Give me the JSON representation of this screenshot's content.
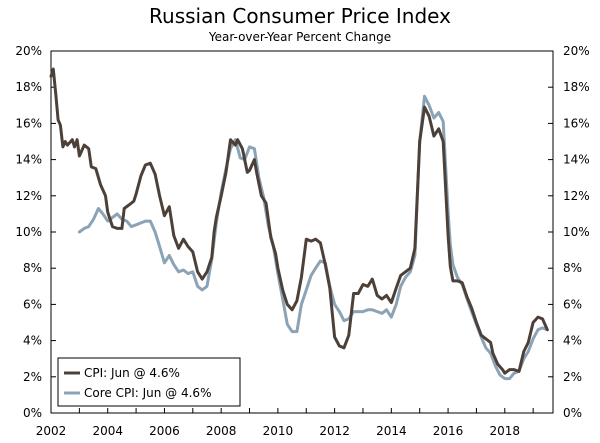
{
  "chart_data": {
    "type": "line",
    "title": "Russian Consumer Price Index",
    "subtitle": "Year-over-Year Percent Change",
    "xlabel": "",
    "ylabel": "",
    "xlim": [
      2002,
      2019.7
    ],
    "ylim": [
      0,
      20
    ],
    "x_ticks": [
      2002,
      2004,
      2006,
      2008,
      2010,
      2012,
      2014,
      2016,
      2018
    ],
    "x_tick_labels": [
      "2002",
      "2004",
      "2006",
      "2008",
      "2010",
      "2012",
      "2014",
      "2016",
      "2018"
    ],
    "y_ticks": [
      0,
      2,
      4,
      6,
      8,
      10,
      12,
      14,
      16,
      18,
      20
    ],
    "y_tick_labels": [
      "0%",
      "2%",
      "4%",
      "6%",
      "8%",
      "10%",
      "12%",
      "14%",
      "16%",
      "18%",
      "20%"
    ],
    "legend_position": "bottom-left",
    "series": [
      {
        "name": "CPI: Jun @ 4.6%",
        "color": "#4d4038",
        "points": [
          [
            2002.0,
            18.6
          ],
          [
            2002.08,
            19.0
          ],
          [
            2002.17,
            17.6
          ],
          [
            2002.25,
            16.2
          ],
          [
            2002.33,
            15.9
          ],
          [
            2002.42,
            14.7
          ],
          [
            2002.5,
            15.0
          ],
          [
            2002.58,
            14.8
          ],
          [
            2002.75,
            15.1
          ],
          [
            2002.83,
            14.7
          ],
          [
            2002.92,
            15.1
          ],
          [
            2003.0,
            14.2
          ],
          [
            2003.17,
            14.8
          ],
          [
            2003.33,
            14.6
          ],
          [
            2003.42,
            13.6
          ],
          [
            2003.58,
            13.5
          ],
          [
            2003.75,
            12.6
          ],
          [
            2003.92,
            12.0
          ],
          [
            2004.0,
            11.1
          ],
          [
            2004.17,
            10.3
          ],
          [
            2004.33,
            10.2
          ],
          [
            2004.5,
            10.2
          ],
          [
            2004.58,
            11.3
          ],
          [
            2004.75,
            11.5
          ],
          [
            2004.92,
            11.7
          ],
          [
            2005.0,
            12.1
          ],
          [
            2005.17,
            13.1
          ],
          [
            2005.33,
            13.7
          ],
          [
            2005.5,
            13.8
          ],
          [
            2005.67,
            13.2
          ],
          [
            2005.83,
            12.0
          ],
          [
            2006.0,
            10.9
          ],
          [
            2006.17,
            11.4
          ],
          [
            2006.33,
            9.8
          ],
          [
            2006.5,
            9.1
          ],
          [
            2006.67,
            9.6
          ],
          [
            2006.83,
            9.2
          ],
          [
            2007.0,
            8.9
          ],
          [
            2007.17,
            7.8
          ],
          [
            2007.33,
            7.4
          ],
          [
            2007.5,
            7.8
          ],
          [
            2007.67,
            8.6
          ],
          [
            2007.75,
            10.0
          ],
          [
            2007.83,
            10.8
          ],
          [
            2008.0,
            12.0
          ],
          [
            2008.17,
            13.3
          ],
          [
            2008.33,
            15.1
          ],
          [
            2008.5,
            14.8
          ],
          [
            2008.58,
            15.1
          ],
          [
            2008.75,
            14.6
          ],
          [
            2008.92,
            13.3
          ],
          [
            2009.0,
            13.4
          ],
          [
            2009.17,
            14.0
          ],
          [
            2009.25,
            13.3
          ],
          [
            2009.42,
            12.0
          ],
          [
            2009.58,
            11.6
          ],
          [
            2009.75,
            9.7
          ],
          [
            2009.92,
            8.8
          ],
          [
            2010.0,
            8.0
          ],
          [
            2010.17,
            6.8
          ],
          [
            2010.33,
            6.0
          ],
          [
            2010.5,
            5.7
          ],
          [
            2010.67,
            6.2
          ],
          [
            2010.83,
            7.5
          ],
          [
            2011.0,
            9.6
          ],
          [
            2011.17,
            9.5
          ],
          [
            2011.33,
            9.6
          ],
          [
            2011.5,
            9.4
          ],
          [
            2011.67,
            8.2
          ],
          [
            2011.83,
            6.9
          ],
          [
            2012.0,
            4.2
          ],
          [
            2012.17,
            3.7
          ],
          [
            2012.33,
            3.6
          ],
          [
            2012.5,
            4.3
          ],
          [
            2012.67,
            6.6
          ],
          [
            2012.83,
            6.6
          ],
          [
            2013.0,
            7.1
          ],
          [
            2013.17,
            7.0
          ],
          [
            2013.33,
            7.4
          ],
          [
            2013.5,
            6.5
          ],
          [
            2013.67,
            6.3
          ],
          [
            2013.83,
            6.5
          ],
          [
            2014.0,
            6.1
          ],
          [
            2014.17,
            6.9
          ],
          [
            2014.33,
            7.6
          ],
          [
            2014.5,
            7.8
          ],
          [
            2014.67,
            8.0
          ],
          [
            2014.83,
            9.1
          ],
          [
            2015.0,
            15.0
          ],
          [
            2015.17,
            16.9
          ],
          [
            2015.33,
            16.4
          ],
          [
            2015.5,
            15.3
          ],
          [
            2015.67,
            15.7
          ],
          [
            2015.83,
            15.0
          ],
          [
            2016.0,
            9.8
          ],
          [
            2016.08,
            8.1
          ],
          [
            2016.17,
            7.3
          ],
          [
            2016.33,
            7.3
          ],
          [
            2016.5,
            7.2
          ],
          [
            2016.67,
            6.4
          ],
          [
            2016.83,
            5.8
          ],
          [
            2017.0,
            5.0
          ],
          [
            2017.17,
            4.3
          ],
          [
            2017.33,
            4.1
          ],
          [
            2017.5,
            3.9
          ],
          [
            2017.58,
            3.3
          ],
          [
            2017.75,
            2.7
          ],
          [
            2017.92,
            2.4
          ],
          [
            2018.0,
            2.2
          ],
          [
            2018.17,
            2.4
          ],
          [
            2018.33,
            2.4
          ],
          [
            2018.5,
            2.3
          ],
          [
            2018.67,
            3.4
          ],
          [
            2018.83,
            3.9
          ],
          [
            2019.0,
            5.0
          ],
          [
            2019.17,
            5.3
          ],
          [
            2019.33,
            5.2
          ],
          [
            2019.5,
            4.6
          ]
        ]
      },
      {
        "name": "Core CPI: Jun @ 4.6%",
        "color": "#8ba3b5",
        "points": [
          [
            2003.0,
            10.0
          ],
          [
            2003.17,
            10.2
          ],
          [
            2003.33,
            10.3
          ],
          [
            2003.5,
            10.7
          ],
          [
            2003.67,
            11.3
          ],
          [
            2003.83,
            11.0
          ],
          [
            2004.0,
            10.6
          ],
          [
            2004.17,
            10.8
          ],
          [
            2004.33,
            11.0
          ],
          [
            2004.5,
            10.7
          ],
          [
            2004.67,
            10.6
          ],
          [
            2004.83,
            10.3
          ],
          [
            2005.0,
            10.4
          ],
          [
            2005.17,
            10.5
          ],
          [
            2005.33,
            10.6
          ],
          [
            2005.5,
            10.6
          ],
          [
            2005.67,
            10.0
          ],
          [
            2005.83,
            9.2
          ],
          [
            2006.0,
            8.3
          ],
          [
            2006.17,
            8.7
          ],
          [
            2006.33,
            8.2
          ],
          [
            2006.5,
            7.8
          ],
          [
            2006.67,
            7.9
          ],
          [
            2006.83,
            7.7
          ],
          [
            2007.0,
            7.8
          ],
          [
            2007.17,
            7.0
          ],
          [
            2007.33,
            6.8
          ],
          [
            2007.5,
            7.0
          ],
          [
            2007.67,
            8.5
          ],
          [
            2007.83,
            10.5
          ],
          [
            2008.0,
            12.2
          ],
          [
            2008.17,
            13.5
          ],
          [
            2008.33,
            14.6
          ],
          [
            2008.5,
            15.1
          ],
          [
            2008.67,
            14.1
          ],
          [
            2008.83,
            14.0
          ],
          [
            2009.0,
            14.7
          ],
          [
            2009.17,
            14.6
          ],
          [
            2009.33,
            13.0
          ],
          [
            2009.5,
            11.9
          ],
          [
            2009.67,
            10.3
          ],
          [
            2009.83,
            9.3
          ],
          [
            2010.0,
            7.7
          ],
          [
            2010.17,
            6.3
          ],
          [
            2010.33,
            4.9
          ],
          [
            2010.5,
            4.5
          ],
          [
            2010.67,
            4.5
          ],
          [
            2010.83,
            6.0
          ],
          [
            2011.0,
            6.8
          ],
          [
            2011.17,
            7.6
          ],
          [
            2011.33,
            8.0
          ],
          [
            2011.5,
            8.4
          ],
          [
            2011.67,
            8.3
          ],
          [
            2011.83,
            7.0
          ],
          [
            2012.0,
            6.0
          ],
          [
            2012.17,
            5.6
          ],
          [
            2012.33,
            5.1
          ],
          [
            2012.5,
            5.2
          ],
          [
            2012.67,
            5.6
          ],
          [
            2012.83,
            5.6
          ],
          [
            2013.0,
            5.6
          ],
          [
            2013.17,
            5.7
          ],
          [
            2013.33,
            5.7
          ],
          [
            2013.5,
            5.6
          ],
          [
            2013.67,
            5.5
          ],
          [
            2013.83,
            5.7
          ],
          [
            2014.0,
            5.3
          ],
          [
            2014.17,
            6.0
          ],
          [
            2014.33,
            7.0
          ],
          [
            2014.5,
            7.5
          ],
          [
            2014.67,
            7.8
          ],
          [
            2014.83,
            8.7
          ],
          [
            2015.0,
            15.0
          ],
          [
            2015.17,
            17.5
          ],
          [
            2015.33,
            17.0
          ],
          [
            2015.5,
            16.3
          ],
          [
            2015.67,
            16.6
          ],
          [
            2015.83,
            16.1
          ],
          [
            2016.0,
            11.1
          ],
          [
            2016.08,
            9.3
          ],
          [
            2016.17,
            8.2
          ],
          [
            2016.33,
            7.5
          ],
          [
            2016.5,
            7.1
          ],
          [
            2016.67,
            6.3
          ],
          [
            2016.83,
            5.6
          ],
          [
            2017.0,
            4.9
          ],
          [
            2017.17,
            4.2
          ],
          [
            2017.33,
            3.6
          ],
          [
            2017.5,
            3.3
          ],
          [
            2017.67,
            2.6
          ],
          [
            2017.83,
            2.1
          ],
          [
            2018.0,
            1.9
          ],
          [
            2018.17,
            1.9
          ],
          [
            2018.33,
            2.2
          ],
          [
            2018.5,
            2.3
          ],
          [
            2018.67,
            3.0
          ],
          [
            2018.83,
            3.4
          ],
          [
            2019.0,
            4.1
          ],
          [
            2019.17,
            4.6
          ],
          [
            2019.33,
            4.7
          ],
          [
            2019.5,
            4.6
          ]
        ]
      }
    ]
  }
}
